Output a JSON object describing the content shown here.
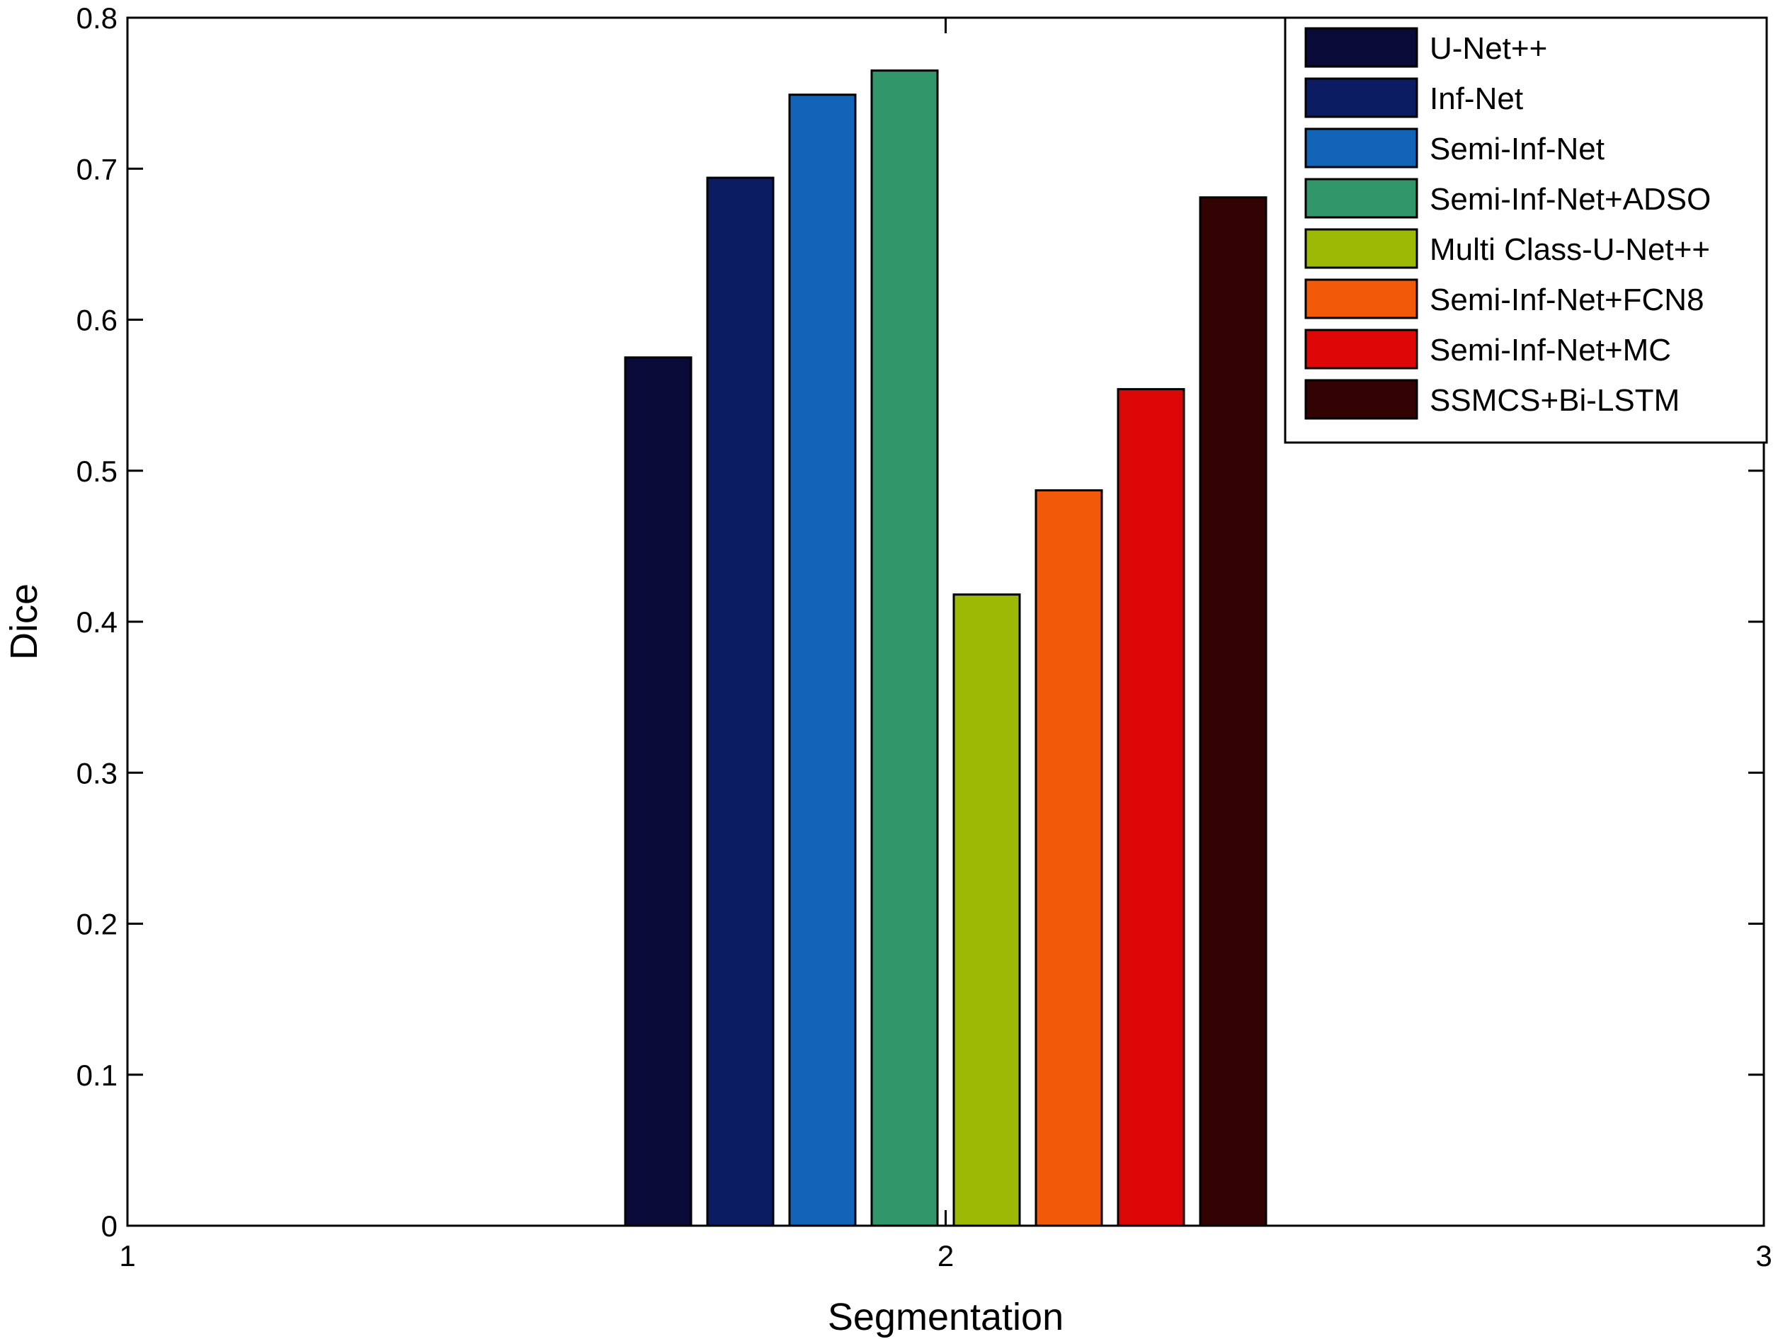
{
  "chart_data": {
    "type": "bar",
    "title": "",
    "xlabel": "Segmentation",
    "ylabel": "Dice",
    "xlim": [
      1,
      3
    ],
    "ylim": [
      0,
      0.8
    ],
    "x_ticks": [
      "1",
      "2",
      "3"
    ],
    "y_ticks": [
      "0",
      "0.1",
      "0.2",
      "0.3",
      "0.4",
      "0.5",
      "0.6",
      "0.7",
      "0.8"
    ],
    "categories": [
      "2"
    ],
    "grid": false,
    "legend_position": "top-right",
    "series": [
      {
        "name": "U-Net++",
        "values": [
          0.575
        ],
        "color": "#0a0a38"
      },
      {
        "name": "Inf-Net",
        "values": [
          0.694
        ],
        "color": "#0c1c62"
      },
      {
        "name": "Semi-Inf-Net",
        "values": [
          0.749
        ],
        "color": "#1164b8"
      },
      {
        "name": "Semi-Inf-Net+ADSO",
        "values": [
          0.765
        ],
        "color": "#31966a"
      },
      {
        "name": "Multi Class-U-Net++",
        "values": [
          0.418
        ],
        "color": "#9db805"
      },
      {
        "name": "Semi-Inf-Net+FCN8",
        "values": [
          0.487
        ],
        "color": "#f15a09"
      },
      {
        "name": "Semi-Inf-Net+MC",
        "values": [
          0.554
        ],
        "color": "#dd0707"
      },
      {
        "name": "SSMCS+Bi-LSTM",
        "values": [
          0.681
        ],
        "color": "#330303"
      }
    ]
  }
}
